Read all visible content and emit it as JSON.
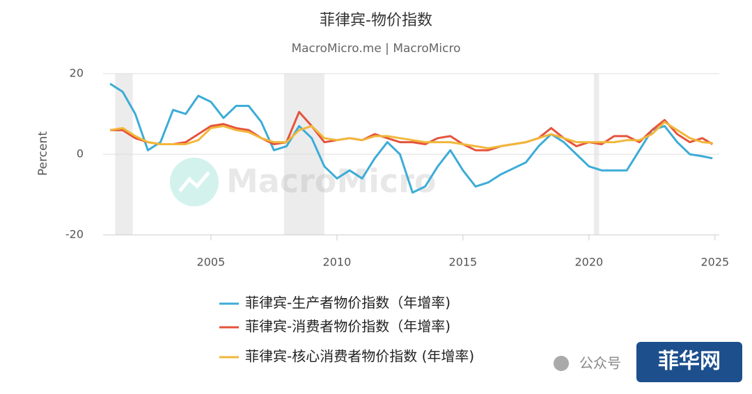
{
  "chart_data": {
    "type": "line",
    "title": "菲律宾-物价指数",
    "subtitle": "MacroMicro.me | MacroMicro",
    "y_label": "Percent",
    "watermark": "MacroMicro",
    "overlay_label": "公众号",
    "overlay_brand": "菲华网",
    "x": [
      2001,
      2001.5,
      2002,
      2002.5,
      2003,
      2003.5,
      2004,
      2004.5,
      2005,
      2005.5,
      2006,
      2006.5,
      2007,
      2007.5,
      2008,
      2008.5,
      2009,
      2009.5,
      2010,
      2010.5,
      2011,
      2011.5,
      2012,
      2012.5,
      2013,
      2013.5,
      2014,
      2014.5,
      2015,
      2015.5,
      2016,
      2016.5,
      2017,
      2017.5,
      2018,
      2018.5,
      2019,
      2019.5,
      2020,
      2020.5,
      2021,
      2021.5,
      2022,
      2022.5,
      2023,
      2023.5,
      2024,
      2024.5,
      2024.9
    ],
    "series": [
      {
        "name": "菲律宾-生产者物价指数（年增率)",
        "color": "#3cacd7",
        "values": [
          17.5,
          15.5,
          10,
          1,
          3,
          11,
          10,
          14.5,
          13,
          9,
          12,
          12,
          8,
          1,
          2,
          7,
          4,
          -3,
          -6,
          -4,
          -6,
          -1,
          3,
          0,
          -9.5,
          -8,
          -3,
          1,
          -4,
          -8,
          -7,
          -5,
          -3.5,
          -2,
          2,
          5,
          3,
          0,
          -3,
          -4,
          -4,
          -4,
          1,
          6,
          7,
          3,
          0,
          -0.5,
          -1
        ]
      },
      {
        "name": "菲律宾-消费者物价指数（年增率)",
        "color": "#e5533c",
        "values": [
          6,
          6,
          4,
          3,
          2.5,
          2.5,
          3,
          5,
          7,
          7.5,
          6.5,
          6,
          4,
          2.5,
          3,
          10.5,
          7,
          3,
          3.5,
          4,
          3.5,
          5,
          4,
          3,
          3,
          2.5,
          4,
          4.5,
          2.5,
          1,
          1,
          2,
          2.5,
          3,
          4,
          6.5,
          4,
          2,
          3,
          2.5,
          4.5,
          4.5,
          3,
          6,
          8.5,
          5,
          3,
          4,
          2.5
        ]
      },
      {
        "name": "菲律宾-核心消费者物价指数 (年增率)",
        "color": "#f1b73a",
        "values": [
          6,
          6.5,
          4.5,
          3,
          2.5,
          2.5,
          2.5,
          3.5,
          6.5,
          7,
          6,
          5.5,
          4,
          3,
          3,
          6,
          7,
          4,
          3.5,
          4,
          3.5,
          4.5,
          4.5,
          4,
          3.5,
          3,
          3,
          3,
          2.5,
          2,
          1.5,
          2,
          2.5,
          3,
          4,
          5,
          4,
          3,
          3,
          3,
          3,
          3.5,
          3.5,
          5,
          8,
          6,
          4,
          3,
          2.8
        ]
      }
    ],
    "shaded_periods": [
      [
        2001.2,
        2001.9
      ],
      [
        2007.9,
        2009.5
      ],
      [
        2020.2,
        2020.4
      ]
    ],
    "xlim": [
      2000.72,
      2025.17
    ],
    "ylim": [
      -20,
      20
    ],
    "xticks": [
      2005,
      2010,
      2015,
      2020,
      2025
    ],
    "yticks": [
      20,
      0,
      -20
    ],
    "grid": true
  }
}
